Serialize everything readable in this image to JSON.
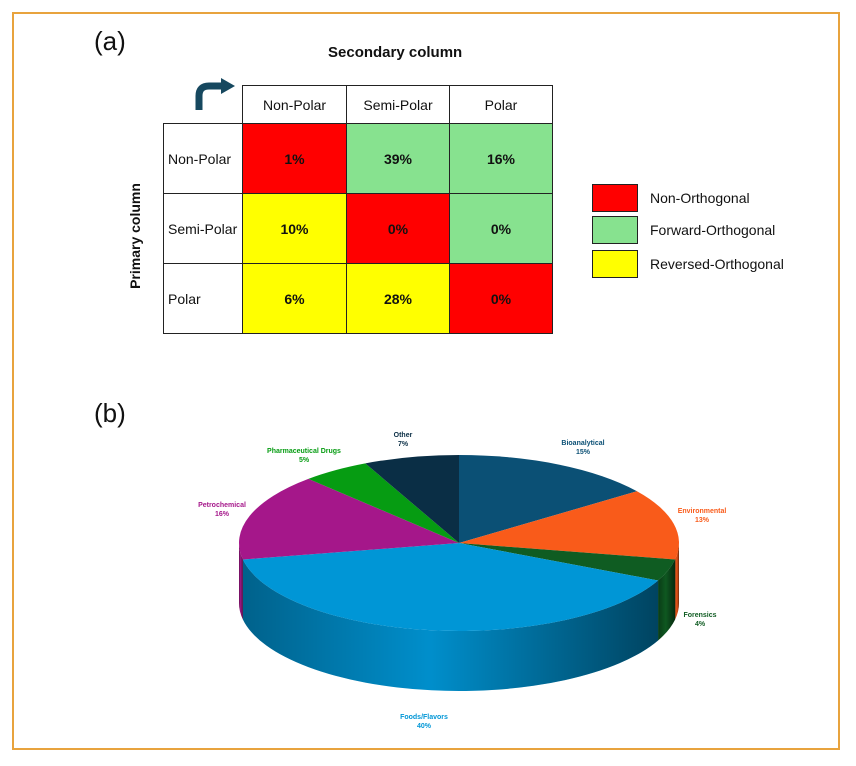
{
  "panels": {
    "a": "(a)",
    "b": "(b)"
  },
  "matrix": {
    "secondary_title": "Secondary column",
    "primary_title": "Primary column",
    "columns": [
      "Non-Polar",
      "Semi-Polar",
      "Polar"
    ],
    "rows": [
      {
        "label": "Non-Polar",
        "cells": [
          {
            "value": "1%",
            "class": "non"
          },
          {
            "value": "39%",
            "class": "fwd"
          },
          {
            "value": "16%",
            "class": "fwd"
          }
        ]
      },
      {
        "label": "Semi-Polar",
        "cells": [
          {
            "value": "10%",
            "class": "rev"
          },
          {
            "value": "0%",
            "class": "non"
          },
          {
            "value": "0%",
            "class": "fwd"
          }
        ]
      },
      {
        "label": "Polar",
        "cells": [
          {
            "value": "6%",
            "class": "rev"
          },
          {
            "value": "28%",
            "class": "rev"
          },
          {
            "value": "0%",
            "class": "non"
          }
        ]
      }
    ],
    "legend": [
      {
        "key": "non",
        "label": "Non-Orthogonal",
        "color": "#ff0000"
      },
      {
        "key": "fwd",
        "label": "Forward-Orthogonal",
        "color": "#87e28f"
      },
      {
        "key": "rev",
        "label": "Reversed-Orthogonal",
        "color": "#ffff00"
      }
    ]
  },
  "chart_data": {
    "type": "pie",
    "style": "3d",
    "slices": [
      {
        "name": "Bioanalytical",
        "value": 15,
        "label": "15%",
        "color": "#0b5075",
        "label_color": "#0b5075"
      },
      {
        "name": "Environmental",
        "value": 13,
        "label": "13%",
        "color": "#f95b1a",
        "label_color": "#f95b1a"
      },
      {
        "name": "Forensics",
        "value": 4,
        "label": "4%",
        "color": "#0f5c22",
        "label_color": "#0f5c22"
      },
      {
        "name": "Foods/Flavors",
        "value": 40,
        "label": "40%",
        "color": "#0096d6",
        "label_color": "#0096d6"
      },
      {
        "name": "Petrochemical",
        "value": 16,
        "label": "16%",
        "color": "#a5178a",
        "label_color": "#a5178a"
      },
      {
        "name": "Pharmaceutical Drugs",
        "value": 5,
        "label": "5%",
        "color": "#069c12",
        "label_color": "#069c12"
      },
      {
        "name": "Other",
        "value": 7,
        "label": "7%",
        "color": "#0a2e45",
        "label_color": "#0a2e45"
      }
    ]
  }
}
